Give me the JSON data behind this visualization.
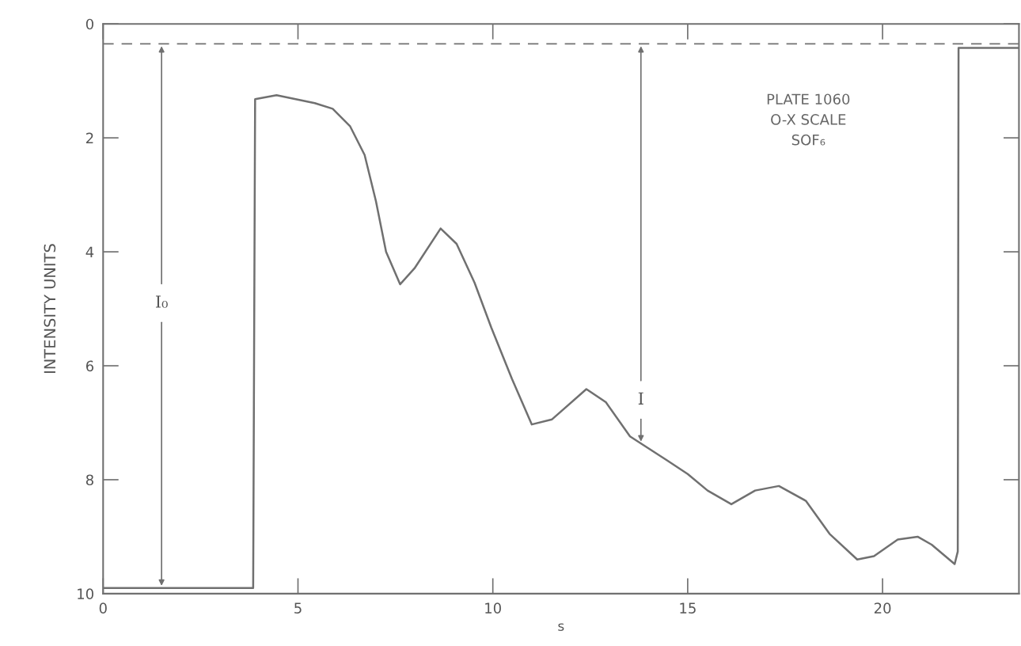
{
  "chart_data": {
    "type": "line",
    "xlabel": "s",
    "ylabel": "INTENSITY UNITS",
    "x": [
      0,
      3.85,
      3.9,
      4.45,
      5.43,
      5.89,
      6.34,
      6.71,
      7.0,
      7.26,
      7.62,
      7.99,
      8.66,
      9.07,
      9.53,
      9.96,
      10.49,
      11.0,
      11.52,
      12.4,
      12.9,
      13.52,
      14.47,
      15.0,
      15.51,
      16.12,
      16.73,
      17.34,
      18.03,
      18.64,
      19.35,
      19.78,
      20.39,
      20.9,
      21.26,
      21.85,
      21.93,
      21.95,
      23.5
    ],
    "series": [
      {
        "color": "#707070",
        "values": [
          9.9,
          9.9,
          1.32,
          1.25,
          1.39,
          1.49,
          1.8,
          2.3,
          3.11,
          4.0,
          4.57,
          4.29,
          3.59,
          3.86,
          4.54,
          5.33,
          6.23,
          7.03,
          6.94,
          6.41,
          6.64,
          7.24,
          7.66,
          7.9,
          8.19,
          8.43,
          8.19,
          8.11,
          8.37,
          8.95,
          9.4,
          9.34,
          9.05,
          9.0,
          9.14,
          9.48,
          9.26,
          0.42,
          0.42
        ]
      }
    ],
    "xlim": [
      0,
      23.5
    ],
    "ylim": [
      10,
      0
    ],
    "xticks": [
      0,
      5,
      10,
      15,
      20
    ],
    "yticks": [
      0,
      2,
      4,
      6,
      8,
      10
    ],
    "ref_lines": [
      {
        "axis": "y",
        "value": 0.35,
        "color": "#707070",
        "line_style": "dashed"
      }
    ],
    "annotations": [
      {
        "text": "I₀",
        "x": 1.5,
        "y": 9.9
      },
      {
        "text": "I",
        "x": 13.8,
        "y": 7.37
      },
      "PLATE 1060\nO-X SCALE\nSOF₆"
    ],
    "grid": false,
    "marker": "none",
    "line_style": "solid"
  }
}
